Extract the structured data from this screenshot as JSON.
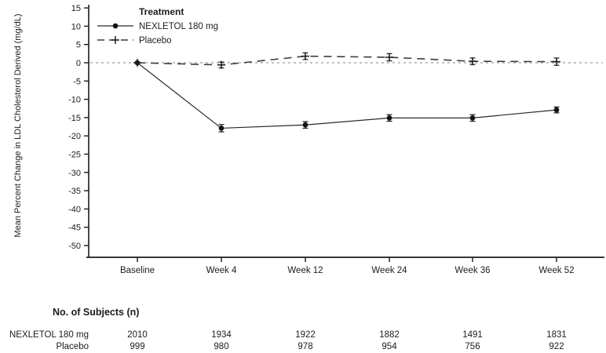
{
  "chart_data": {
    "type": "line",
    "title": "",
    "xlabel": "",
    "ylabel": "Mean Percent Change in LDL Cholesterol Derived (mg/dL)",
    "categories": [
      "Baseline",
      "Week 4",
      "Week 12",
      "Week 24",
      "Week 36",
      "Week 52"
    ],
    "ylim": [
      -50,
      15
    ],
    "yticks": [
      15,
      10,
      5,
      0,
      -5,
      -10,
      -15,
      -20,
      -25,
      -30,
      -35,
      -40,
      -45,
      -50
    ],
    "zero_reference_line": true,
    "grid": "off",
    "legend": {
      "title": "Treatment",
      "position": "top-left-inside",
      "items": [
        "NEXLETOL 180 mg",
        "Placebo"
      ]
    },
    "series": [
      {
        "name": "NEXLETOL 180 mg",
        "line": "solid",
        "marker": "filled-circle",
        "color": "#2a2a2a",
        "values": [
          0,
          -17.9,
          -17.0,
          -15.1,
          -15.1,
          -12.9
        ],
        "errors": [
          0,
          1.0,
          0.9,
          0.9,
          0.9,
          0.8
        ]
      },
      {
        "name": "Placebo",
        "line": "dashed",
        "marker": "plus",
        "color": "#3d3d3d",
        "values": [
          0,
          -0.6,
          1.8,
          1.5,
          0.4,
          0.3
        ],
        "errors": [
          0,
          0.8,
          0.9,
          1.0,
          0.9,
          1.0
        ]
      }
    ]
  },
  "subjects_table": {
    "header": "No. of Subjects (n)",
    "rows": [
      {
        "label": "NEXLETOL 180 mg",
        "values": [
          "2010",
          "1934",
          "1922",
          "1882",
          "1491",
          "1831"
        ]
      },
      {
        "label": "Placebo",
        "values": [
          "999",
          "980",
          "978",
          "954",
          "756",
          "922"
        ]
      }
    ]
  },
  "colors": {
    "axis": "#1c1c1c",
    "zero_line": "#9a9a9a",
    "background": "#ffffff"
  }
}
